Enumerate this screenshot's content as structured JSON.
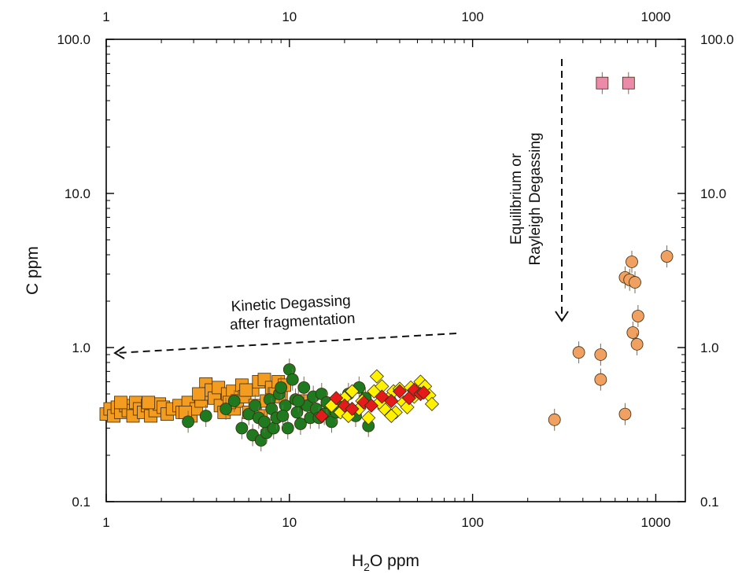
{
  "chart_data": {
    "type": "scatter",
    "x_scale": "log",
    "y_scale": "log",
    "xlim": [
      1,
      1450
    ],
    "ylim": [
      0.1,
      100
    ],
    "xlabel": "H2O  ppm",
    "ylabel": "C  ppm",
    "x_ticks": [
      "1",
      "10",
      "100",
      "1000"
    ],
    "y_ticks": [
      "0.1",
      "1.0",
      "10.0",
      "100.0"
    ],
    "grid": false,
    "legend": "none",
    "annotations": {
      "kinetic_line1": "Kinetic Degassing",
      "kinetic_line2": "after fragmentation",
      "equilibrium_line1": "Equilibrium or",
      "equilibrium_line2": "Rayleigh Degassing"
    },
    "series": [
      {
        "marker": "square",
        "color": "#f39c1f",
        "points": [
          [
            1.0,
            0.37
          ],
          [
            1.05,
            0.4
          ],
          [
            1.1,
            0.36
          ],
          [
            1.15,
            0.41
          ],
          [
            1.2,
            0.38
          ],
          [
            1.28,
            0.42
          ],
          [
            1.32,
            0.39
          ],
          [
            1.4,
            0.36
          ],
          [
            1.45,
            0.44
          ],
          [
            1.52,
            0.4
          ],
          [
            1.6,
            0.38
          ],
          [
            1.68,
            0.42
          ],
          [
            1.75,
            0.36
          ],
          [
            1.85,
            0.39
          ],
          [
            1.95,
            0.43
          ],
          [
            2.05,
            0.41
          ],
          [
            2.15,
            0.37
          ],
          [
            2.3,
            0.4
          ],
          [
            2.5,
            0.42
          ],
          [
            2.6,
            0.38
          ],
          [
            2.8,
            0.44
          ],
          [
            2.9,
            0.36
          ],
          [
            3.1,
            0.4
          ],
          [
            3.3,
            0.45
          ],
          [
            3.5,
            0.58
          ],
          [
            3.6,
            0.5
          ],
          [
            3.75,
            0.53
          ],
          [
            3.9,
            0.47
          ],
          [
            4.1,
            0.55
          ],
          [
            4.2,
            0.42
          ],
          [
            4.4,
            0.38
          ],
          [
            4.6,
            0.5
          ],
          [
            4.9,
            0.52
          ],
          [
            5.0,
            0.4
          ],
          [
            5.2,
            0.45
          ],
          [
            5.5,
            0.57
          ],
          [
            5.7,
            0.48
          ],
          [
            6.0,
            0.38
          ],
          [
            6.3,
            0.53
          ],
          [
            6.5,
            0.42
          ],
          [
            6.8,
            0.6
          ],
          [
            7.0,
            0.36
          ],
          [
            7.3,
            0.62
          ],
          [
            7.5,
            0.45
          ],
          [
            8.0,
            0.55
          ],
          [
            8.3,
            0.5
          ],
          [
            8.7,
            0.6
          ],
          [
            9.0,
            0.48
          ],
          [
            9.4,
            0.57
          ],
          [
            1.2,
            0.44
          ],
          [
            1.7,
            0.44
          ],
          [
            2.7,
            0.38
          ],
          [
            3.2,
            0.5
          ],
          [
            4.7,
            0.44
          ],
          [
            5.8,
            0.53
          ],
          [
            12.0,
            0.45
          ]
        ]
      },
      {
        "marker": "circle",
        "color": "#1f7a1f",
        "points": [
          [
            2.8,
            0.33
          ],
          [
            3.5,
            0.36
          ],
          [
            4.5,
            0.4
          ],
          [
            5.0,
            0.45
          ],
          [
            5.5,
            0.3
          ],
          [
            6.0,
            0.37
          ],
          [
            6.3,
            0.27
          ],
          [
            6.5,
            0.42
          ],
          [
            6.8,
            0.35
          ],
          [
            7.0,
            0.25
          ],
          [
            7.5,
            0.28
          ],
          [
            7.8,
            0.46
          ],
          [
            8.0,
            0.4
          ],
          [
            8.2,
            0.3
          ],
          [
            8.5,
            0.35
          ],
          [
            8.8,
            0.5
          ],
          [
            9.0,
            0.55
          ],
          [
            9.5,
            0.42
          ],
          [
            9.8,
            0.3
          ],
          [
            10.0,
            0.72
          ],
          [
            10.4,
            0.62
          ],
          [
            10.8,
            0.46
          ],
          [
            11.0,
            0.38
          ],
          [
            11.5,
            0.32
          ],
          [
            12.0,
            0.55
          ],
          [
            12.5,
            0.42
          ],
          [
            13.0,
            0.35
          ],
          [
            13.5,
            0.48
          ],
          [
            14.0,
            0.4
          ],
          [
            15.0,
            0.5
          ],
          [
            15.5,
            0.37
          ],
          [
            16.0,
            0.44
          ],
          [
            17.0,
            0.33
          ],
          [
            18.0,
            0.38
          ],
          [
            19.0,
            0.43
          ],
          [
            21.0,
            0.5
          ],
          [
            23.0,
            0.36
          ],
          [
            24.0,
            0.55
          ],
          [
            26.0,
            0.47
          ],
          [
            27.0,
            0.31
          ],
          [
            7.3,
            0.33
          ],
          [
            9.2,
            0.36
          ],
          [
            11.2,
            0.45
          ],
          [
            14.5,
            0.35
          ]
        ]
      },
      {
        "marker": "diamond",
        "color": "#fff200",
        "points": [
          [
            17.0,
            0.42
          ],
          [
            19.0,
            0.38
          ],
          [
            20.0,
            0.47
          ],
          [
            22.0,
            0.52
          ],
          [
            24.0,
            0.4
          ],
          [
            25.0,
            0.45
          ],
          [
            27.0,
            0.35
          ],
          [
            29.0,
            0.52
          ],
          [
            30.0,
            0.65
          ],
          [
            32.0,
            0.56
          ],
          [
            33.0,
            0.4
          ],
          [
            35.0,
            0.47
          ],
          [
            37.0,
            0.52
          ],
          [
            38.0,
            0.38
          ],
          [
            40.0,
            0.54
          ],
          [
            42.0,
            0.44
          ],
          [
            44.0,
            0.41
          ],
          [
            46.0,
            0.55
          ],
          [
            48.0,
            0.48
          ],
          [
            50.0,
            0.52
          ],
          [
            52.0,
            0.6
          ],
          [
            55.0,
            0.56
          ],
          [
            58.0,
            0.49
          ],
          [
            60.0,
            0.43
          ],
          [
            21.0,
            0.36
          ],
          [
            31.0,
            0.44
          ],
          [
            36.0,
            0.36
          ]
        ]
      },
      {
        "marker": "diamond",
        "color": "#e51b1b",
        "points": [
          [
            15.0,
            0.36
          ],
          [
            18.0,
            0.47
          ],
          [
            20.0,
            0.42
          ],
          [
            22.0,
            0.4
          ],
          [
            25.5,
            0.44
          ],
          [
            28.0,
            0.42
          ],
          [
            32.0,
            0.48
          ],
          [
            36.0,
            0.45
          ],
          [
            40.0,
            0.52
          ],
          [
            45.0,
            0.47
          ],
          [
            48.0,
            0.53
          ],
          [
            52.0,
            0.5
          ],
          [
            54.0,
            0.51
          ]
        ]
      },
      {
        "marker": "circle",
        "color": "#f0a060",
        "points": [
          [
            280,
            0.34
          ],
          [
            380,
            0.93
          ],
          [
            500,
            0.9
          ],
          [
            500,
            0.62
          ],
          [
            680,
            0.37
          ],
          [
            680,
            2.85
          ],
          [
            720,
            2.75
          ],
          [
            740,
            3.6
          ],
          [
            750,
            1.25
          ],
          [
            770,
            2.65
          ],
          [
            790,
            1.05
          ],
          [
            800,
            1.6
          ],
          [
            1150,
            3.9
          ]
        ]
      },
      {
        "marker": "square",
        "color": "#ec8aaa",
        "points": [
          [
            510,
            52
          ],
          [
            710,
            52
          ]
        ]
      }
    ]
  }
}
